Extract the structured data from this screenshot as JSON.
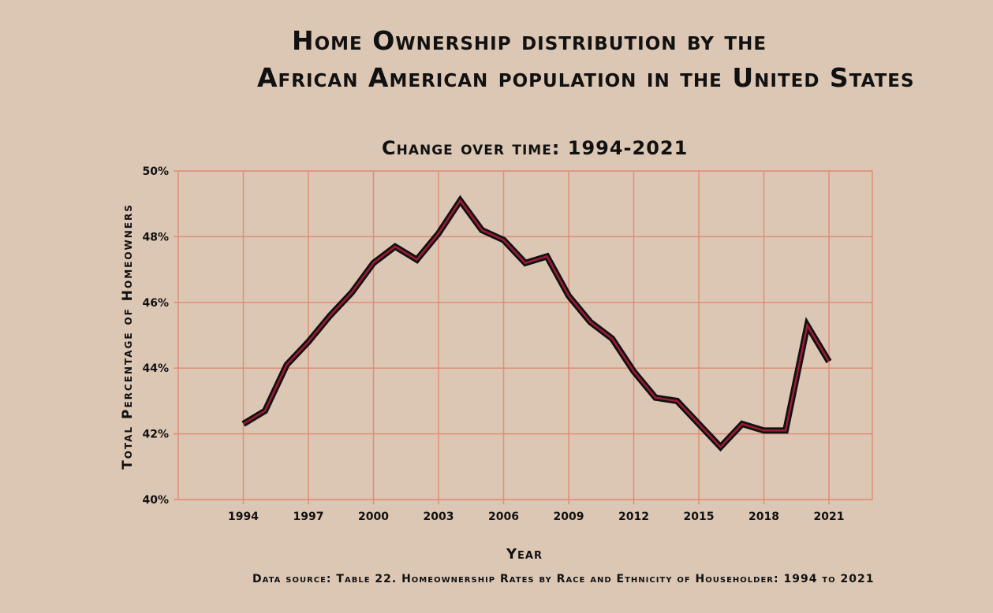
{
  "title_line1": "Home Ownership distribution by the",
  "title_line2": "African American population in the United States",
  "source_note": "Data source: Table 22. Homeownership Rates by Race and Ethnicity of Householder: 1994 to 2021",
  "colors": {
    "background": "#dcc7b4",
    "grid": "#de8f78",
    "line_outer": "#111111",
    "line_inner": "#a01a35"
  },
  "chart_data": {
    "type": "line",
    "title": "Change over time: 1994-2021",
    "xlabel": "Year",
    "ylabel": "Total Percentage of Homeowners",
    "xlim": [
      1991,
      2023
    ],
    "ylim": [
      40,
      50
    ],
    "x_ticks": [
      1994,
      1997,
      2000,
      2003,
      2006,
      2009,
      2012,
      2015,
      2018,
      2021
    ],
    "y_ticks": [
      40,
      42,
      44,
      46,
      48,
      50
    ],
    "y_tick_labels": [
      "40%",
      "42%",
      "44%",
      "46%",
      "48%",
      "50%"
    ],
    "grid": true,
    "series": [
      {
        "x": [
          1994,
          1995,
          1996,
          1997,
          1998,
          1999,
          2000,
          2001,
          2002,
          2003,
          2004,
          2005,
          2006,
          2007,
          2008,
          2009,
          2010,
          2011,
          2012,
          2013,
          2014,
          2015,
          2016,
          2017,
          2018,
          2019,
          2020,
          2021
        ],
        "values": [
          42.3,
          42.7,
          44.1,
          44.8,
          45.6,
          46.3,
          47.2,
          47.7,
          47.3,
          48.1,
          49.1,
          48.2,
          47.9,
          47.2,
          47.4,
          46.2,
          45.4,
          44.9,
          43.9,
          43.1,
          43.0,
          42.3,
          41.6,
          42.3,
          42.1,
          42.1,
          45.3,
          44.2
        ]
      }
    ]
  }
}
